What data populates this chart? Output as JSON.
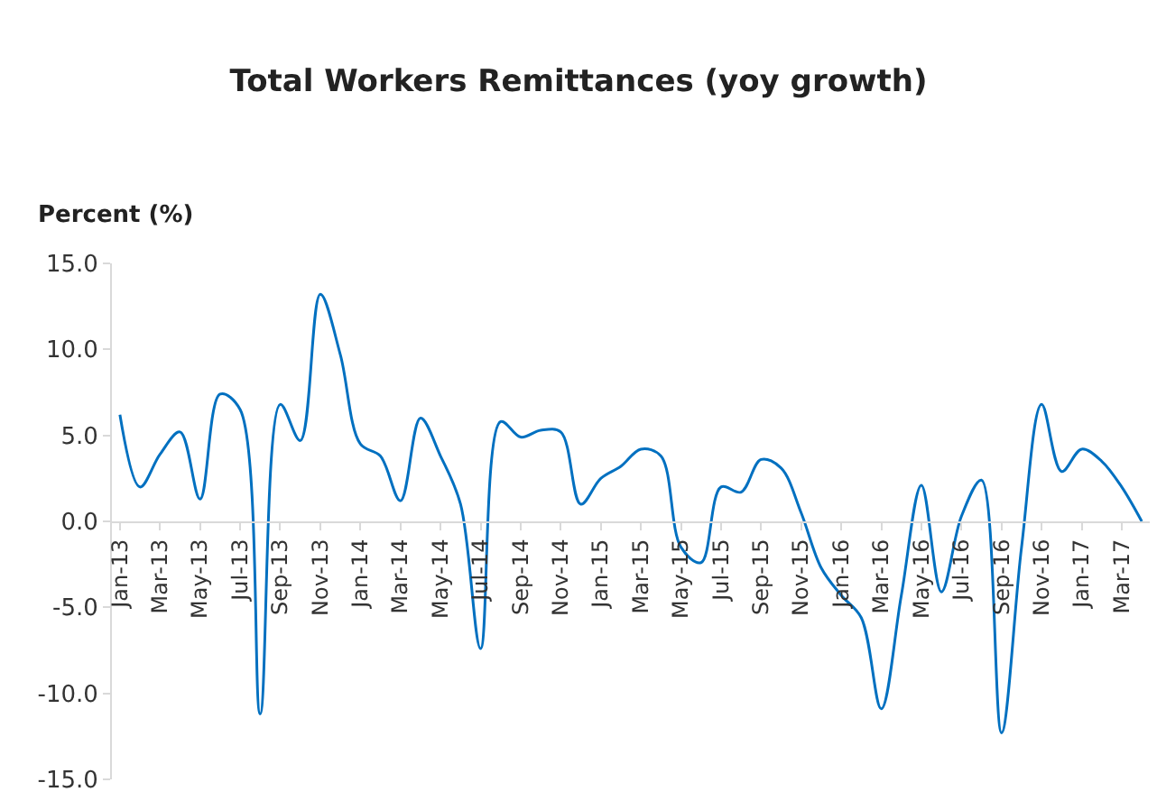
{
  "chart_data": {
    "type": "line",
    "title": "Total Workers Remittances (yoy growth)",
    "ylabel": "Percent (%)",
    "categories": [
      "Jan-13",
      null,
      "Mar-13",
      null,
      "May-13",
      null,
      "Jul-13",
      null,
      "Sep-13",
      null,
      "Nov-13",
      null,
      "Jan-14",
      null,
      "Mar-14",
      null,
      "May-14",
      null,
      "Jul-14",
      null,
      "Sep-14",
      null,
      "Nov-14",
      null,
      "Jan-15",
      null,
      "Mar-15",
      null,
      "May-15",
      null,
      "Jul-15",
      null,
      "Sep-15",
      null,
      "Nov-15",
      null,
      "Jan-16",
      null,
      "Mar-16",
      null,
      "May-16",
      null,
      "Jul-16",
      null,
      "Sep-16",
      null,
      "Nov-16",
      null,
      "Jan-17",
      null,
      "Mar-17",
      null
    ],
    "series": [
      {
        "color": "#0070c0",
        "values": [
          6.2,
          2.0,
          3.9,
          5.2,
          1.3,
          7.4,
          6.5,
          -11.2,
          6.8,
          4.7,
          13.2,
          9.7,
          4.5,
          3.8,
          1.2,
          6.0,
          3.8,
          1.0,
          -7.4,
          5.8,
          4.9,
          5.3,
          5.2,
          1.0,
          2.5,
          3.2,
          4.2,
          3.8,
          -1.5,
          -2.4,
          2.0,
          1.7,
          3.6,
          3.1,
          0.5,
          -2.7,
          -4.3,
          -5.6,
          -10.9,
          -4.3,
          2.1,
          -4.1,
          0.3,
          2.4,
          -12.3,
          -1.5,
          6.8,
          2.9,
          4.2,
          3.5,
          2.0,
          0.0
        ]
      }
    ],
    "ylim": [
      -15,
      15
    ],
    "yticks": [
      {
        "value": -15,
        "label": "-15.0"
      },
      {
        "value": -10,
        "label": "-10.0"
      },
      {
        "value": -5,
        "label": "-5.0"
      },
      {
        "value": 0,
        "label": "0.0"
      },
      {
        "value": 5,
        "label": "5.0"
      },
      {
        "value": 10,
        "label": "10.0"
      },
      {
        "value": 15,
        "label": "15.0"
      }
    ],
    "legend": false,
    "marker": "none",
    "line_style": "solid"
  }
}
